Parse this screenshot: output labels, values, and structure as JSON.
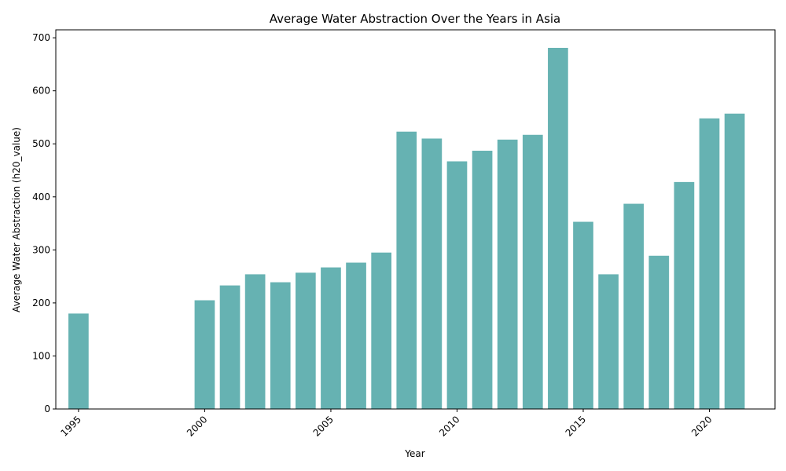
{
  "chart_data": {
    "type": "bar",
    "title": "Average Water Abstraction Over the Years in Asia",
    "xlabel": "Year",
    "ylabel": "Average Water Abstraction (h20_value)",
    "x": [
      1995,
      2000,
      2001,
      2002,
      2003,
      2004,
      2005,
      2006,
      2007,
      2008,
      2009,
      2010,
      2011,
      2012,
      2013,
      2014,
      2015,
      2016,
      2017,
      2018,
      2019,
      2020,
      2021
    ],
    "values": [
      180,
      205,
      233,
      254,
      239,
      257,
      267,
      276,
      295,
      523,
      510,
      467,
      487,
      508,
      517,
      681,
      353,
      254,
      387,
      289,
      428,
      548,
      557
    ],
    "xlim": [
      1994.1,
      2022.6
    ],
    "ylim": [
      0,
      715
    ],
    "xticks": [
      1995,
      2000,
      2005,
      2010,
      2015,
      2020
    ],
    "yticks": [
      0,
      100,
      200,
      300,
      400,
      500,
      600,
      700
    ],
    "bar_color": "#66b2b2",
    "grid": false,
    "legend": "none"
  }
}
